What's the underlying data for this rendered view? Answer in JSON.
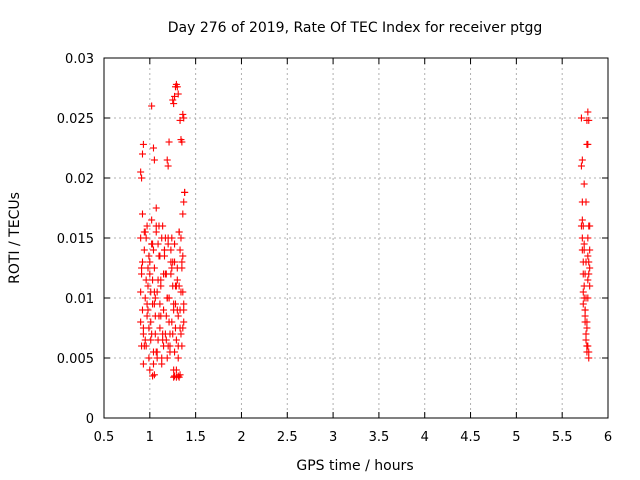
{
  "chart_data": {
    "type": "scatter",
    "title": "Day 276 of 2019, Rate Of TEC Index for receiver ptgg",
    "xlabel": "GPS time / hours",
    "ylabel": "ROTI / TECUs",
    "xlim": [
      0.5,
      6
    ],
    "ylim": [
      0,
      0.03
    ],
    "x_ticks": [
      "0.5",
      "1",
      "1.5",
      "2",
      "2.5",
      "3",
      "3.5",
      "4",
      "4.5",
      "5",
      "5.5",
      "6"
    ],
    "y_ticks": [
      "0",
      "0.005",
      "0.01",
      "0.015",
      "0.02",
      "0.025",
      "0.03"
    ],
    "grid": true,
    "marker": "+",
    "color": "#ff0000",
    "series": [
      {
        "name": "ROTI",
        "x": [
          0.9,
          0.91,
          0.92,
          0.93,
          0.94,
          0.95,
          0.96,
          0.97,
          0.98,
          0.99,
          1.0,
          1.01,
          1.02,
          1.03,
          1.04,
          1.05,
          1.06,
          1.07,
          1.08,
          1.09,
          1.1,
          1.11,
          1.12,
          1.13,
          1.14,
          1.15,
          1.16,
          1.17,
          1.18,
          1.19,
          1.2,
          1.21,
          1.22,
          1.23,
          1.24,
          1.25,
          1.26,
          1.27,
          1.28,
          1.29,
          1.3,
          1.31,
          1.32,
          1.33,
          1.34,
          1.35,
          1.36,
          1.37,
          0.9,
          0.92,
          0.94,
          0.96,
          0.98,
          1.0,
          1.02,
          1.04,
          1.06,
          1.08,
          1.1,
          1.12,
          1.14,
          1.16,
          1.18,
          1.2,
          1.22,
          1.24,
          1.26,
          1.28,
          1.3,
          1.32,
          1.34,
          1.36,
          0.91,
          0.93,
          0.95,
          0.97,
          0.99,
          1.01,
          1.03,
          1.05,
          1.07,
          1.09,
          1.11,
          1.13,
          1.15,
          1.17,
          1.19,
          1.21,
          1.23,
          1.25,
          1.27,
          1.29,
          1.31,
          1.33,
          1.35,
          1.37,
          0.9,
          0.93,
          0.96,
          0.99,
          1.02,
          1.05,
          1.08,
          1.11,
          1.14,
          1.17,
          1.2,
          1.23,
          1.26,
          1.29,
          1.32,
          1.35,
          0.92,
          0.95,
          0.98,
          1.01,
          1.04,
          1.07,
          1.1,
          1.13,
          1.16,
          1.19,
          1.22,
          1.25,
          1.28,
          1.31,
          1.34,
          1.37,
          0.91,
          0.94,
          0.97,
          1.0,
          1.03,
          1.06,
          1.09,
          1.12,
          1.15,
          1.18,
          1.21,
          1.24,
          1.27,
          1.3,
          1.33,
          1.36,
          0.9,
          0.91,
          0.92,
          0.93,
          1.02,
          1.04,
          1.05,
          1.07,
          1.19,
          1.2,
          1.21,
          1.25,
          1.26,
          1.27,
          1.28,
          1.29,
          1.3,
          1.31,
          1.33,
          1.34,
          1.35,
          1.36,
          1.37,
          1.38,
          1.03,
          1.05,
          1.26,
          1.27,
          1.29,
          1.31,
          1.32,
          1.33,
          1.36,
          1.37,
          1.38,
          5.71,
          5.72,
          5.73,
          5.74,
          5.75,
          5.76,
          5.77,
          5.78,
          5.79,
          5.8,
          5.71,
          5.72,
          5.73,
          5.74,
          5.75,
          5.76,
          5.77,
          5.78,
          5.79,
          5.8,
          5.71,
          5.72,
          5.73,
          5.74,
          5.75,
          5.76,
          5.77,
          5.78,
          5.79,
          5.8,
          5.72,
          5.74,
          5.76,
          5.78,
          5.8,
          5.73,
          5.75,
          5.77,
          5.79,
          5.72,
          5.74,
          5.76,
          5.78,
          5.73,
          5.75,
          5.77,
          5.79,
          5.77,
          5.78,
          5.77,
          5.78,
          5.79
        ],
        "y": [
          0.015,
          0.012,
          0.009,
          0.007,
          0.014,
          0.01,
          0.006,
          0.016,
          0.011,
          0.005,
          0.013,
          0.008,
          0.0145,
          0.0095,
          0.0055,
          0.0125,
          0.0085,
          0.0155,
          0.0105,
          0.0065,
          0.0135,
          0.0075,
          0.0115,
          0.0045,
          0.016,
          0.009,
          0.014,
          0.007,
          0.012,
          0.005,
          0.015,
          0.01,
          0.006,
          0.013,
          0.008,
          0.011,
          0.004,
          0.0145,
          0.0095,
          0.0065,
          0.0125,
          0.0085,
          0.0155,
          0.0075,
          0.0105,
          0.006,
          0.0135,
          0.009,
          0.008,
          0.013,
          0.006,
          0.015,
          0.009,
          0.012,
          0.007,
          0.014,
          0.01,
          0.005,
          0.016,
          0.011,
          0.0065,
          0.0135,
          0.0085,
          0.0145,
          0.0055,
          0.0125,
          0.0095,
          0.0075,
          0.0115,
          0.0155,
          0.007,
          0.0105,
          0.0125,
          0.0075,
          0.0155,
          0.0085,
          0.0135,
          0.0065,
          0.0145,
          0.0105,
          0.0055,
          0.0115,
          0.0095,
          0.015,
          0.006,
          0.012,
          0.01,
          0.008,
          0.014,
          0.007,
          0.013,
          0.011,
          0.005,
          0.009,
          0.0125,
          0.008,
          0.0105,
          0.0045,
          0.0115,
          0.0075,
          0.0165,
          0.0095,
          0.0055,
          0.0135,
          0.007,
          0.015,
          0.006,
          0.012,
          0.009,
          0.004,
          0.011,
          0.013,
          0.017,
          0.0065,
          0.0125,
          0.0105,
          0.0045,
          0.016,
          0.0085,
          0.005,
          0.014,
          0.01,
          0.007,
          0.013,
          0.011,
          0.006,
          0.015,
          0.0095,
          0.006,
          0.0155,
          0.0095,
          0.004,
          0.0115,
          0.007,
          0.0145,
          0.0085,
          0.012,
          0.0065,
          0.01,
          0.015,
          0.0055,
          0.009,
          0.014,
          0.0075,
          0.0205,
          0.02,
          0.022,
          0.0228,
          0.026,
          0.0225,
          0.0215,
          0.0175,
          0.0215,
          0.021,
          0.023,
          0.0265,
          0.0262,
          0.0268,
          0.0276,
          0.0278,
          0.0276,
          0.027,
          0.0248,
          0.0232,
          0.023,
          0.0253,
          0.025,
          0.0188,
          0.0035,
          0.0036,
          0.0034,
          0.0035,
          0.0034,
          0.0035,
          0.0034,
          0.0036,
          0.017,
          0.018,
          0.0188,
          0.025,
          0.018,
          0.016,
          0.014,
          0.012,
          0.01,
          0.008,
          0.006,
          0.005,
          0.016,
          0.021,
          0.015,
          0.013,
          0.011,
          0.009,
          0.007,
          0.006,
          0.015,
          0.013,
          0.011,
          0.016,
          0.014,
          0.012,
          0.01,
          0.0085,
          0.0065,
          0.0055,
          0.01,
          0.012,
          0.014,
          0.0215,
          0.0195,
          0.018,
          0.0135,
          0.0125,
          0.0105,
          0.009,
          0.0075,
          0.0055,
          0.0165,
          0.0145,
          0.013,
          0.0115,
          0.0095,
          0.008,
          0.006,
          0.016,
          0.0228,
          0.0228,
          0.0248,
          0.0255,
          0.0248
        ]
      }
    ]
  }
}
